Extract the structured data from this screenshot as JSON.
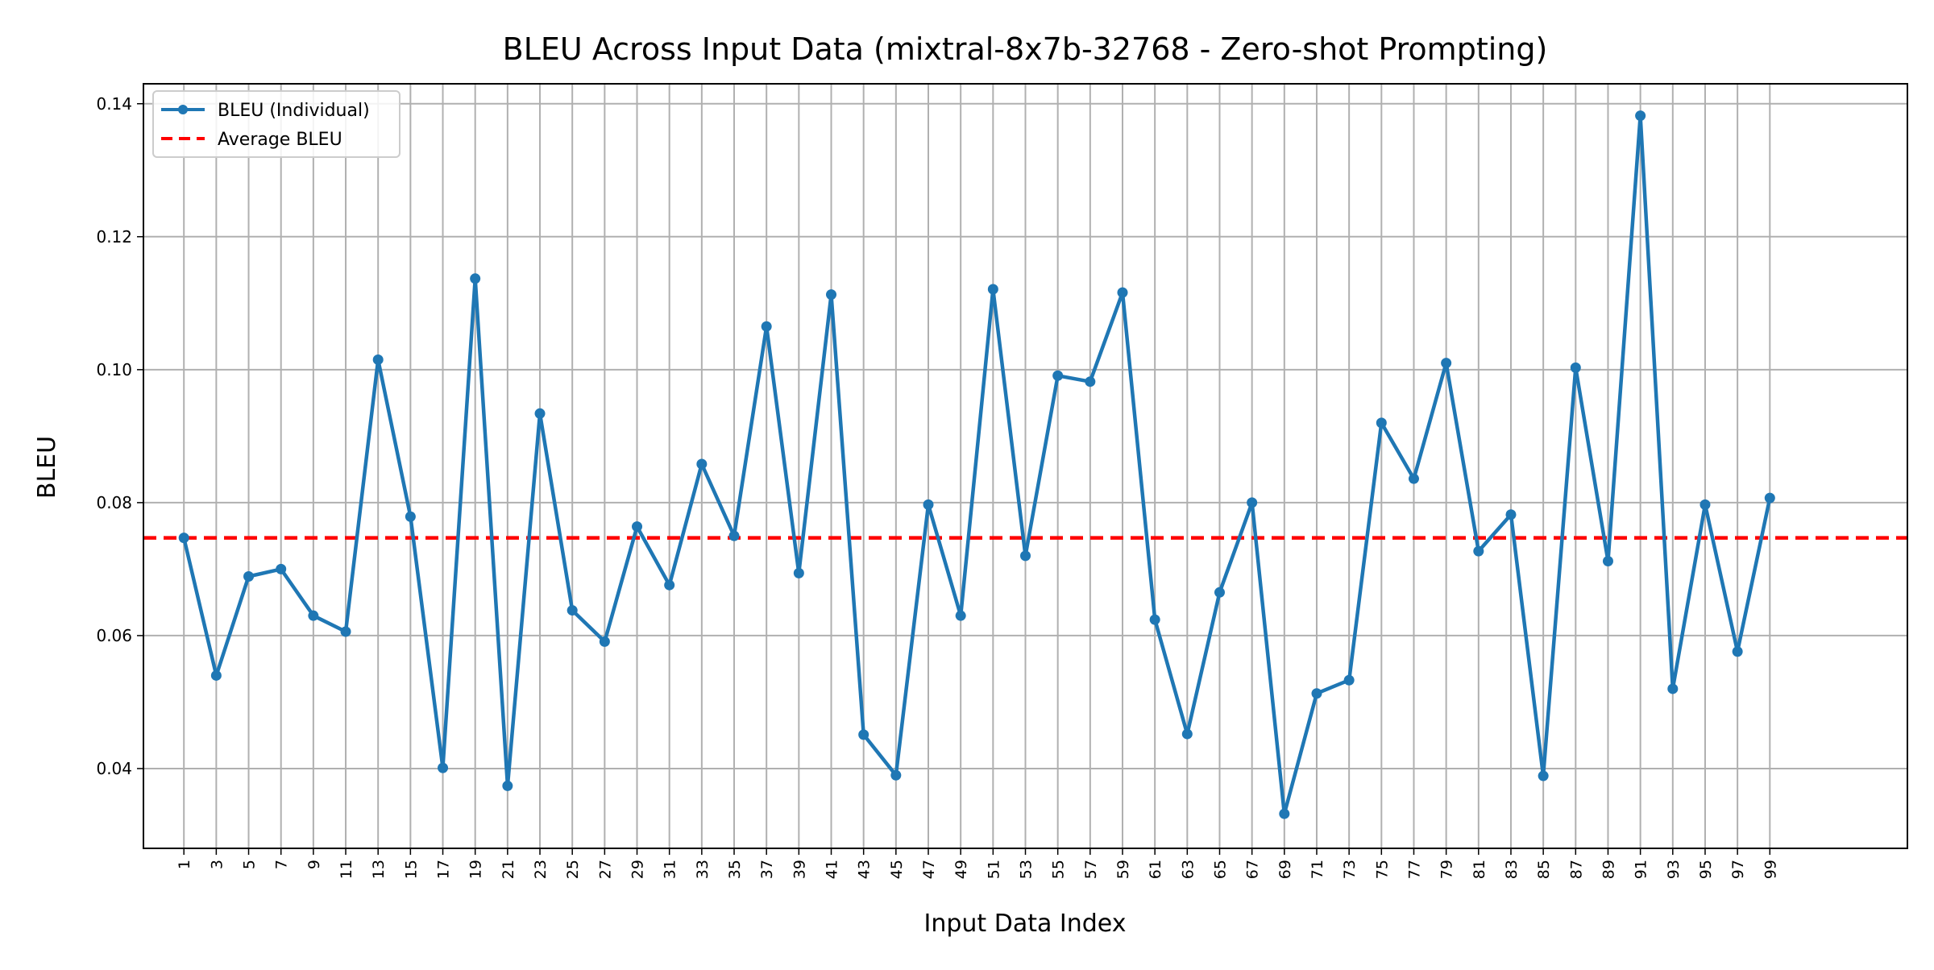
{
  "chart_data": {
    "type": "line",
    "title": "BLEU Across Input Data (mixtral-8x7b-32768 - Zero-shot Prompting)",
    "xlabel": "Input Data Index",
    "ylabel": "BLEU",
    "x": [
      1,
      3,
      5,
      7,
      9,
      11,
      13,
      15,
      17,
      19,
      21,
      23,
      25,
      27,
      29,
      31,
      33,
      35,
      37,
      39,
      41,
      43,
      45,
      47,
      49,
      51,
      53,
      55,
      57,
      59,
      61,
      63,
      65,
      67,
      69,
      71,
      73,
      75,
      77,
      79,
      81,
      83,
      85,
      87,
      89,
      91,
      93,
      95,
      97,
      99
    ],
    "xlim": [
      -1.5,
      107.5
    ],
    "ylim": [
      0.028,
      0.143
    ],
    "yticks": [
      0.04,
      0.06,
      0.08,
      0.1,
      0.12,
      0.14
    ],
    "ytick_labels": [
      "0.04",
      "0.06",
      "0.08",
      "0.10",
      "0.12",
      "0.14"
    ],
    "grid": true,
    "legend_position": "upper-left",
    "series": [
      {
        "name": "BLEU (Individual)",
        "color": "#1f77b4",
        "style": "solid-with-markers",
        "values": [
          0.0747,
          0.054,
          0.0689,
          0.07,
          0.063,
          0.0606,
          0.1015,
          0.0779,
          0.0401,
          0.1137,
          0.0374,
          0.0934,
          0.0638,
          0.0591,
          0.0764,
          0.0676,
          0.0858,
          0.075,
          0.1065,
          0.0694,
          0.1113,
          0.0451,
          0.039,
          0.0797,
          0.063,
          0.1121,
          0.072,
          0.0991,
          0.0982,
          0.1116,
          0.0624,
          0.0452,
          0.0665,
          0.08,
          0.0332,
          0.0513,
          0.0533,
          0.092,
          0.0836,
          0.101,
          0.0727,
          0.0782,
          0.0389,
          0.1003,
          0.0712,
          0.1382,
          0.052,
          0.0797,
          0.0576,
          0.0807
        ]
      },
      {
        "name": "Average BLEU",
        "color": "#ff0000",
        "style": "dashed",
        "value": 0.0747
      }
    ]
  }
}
